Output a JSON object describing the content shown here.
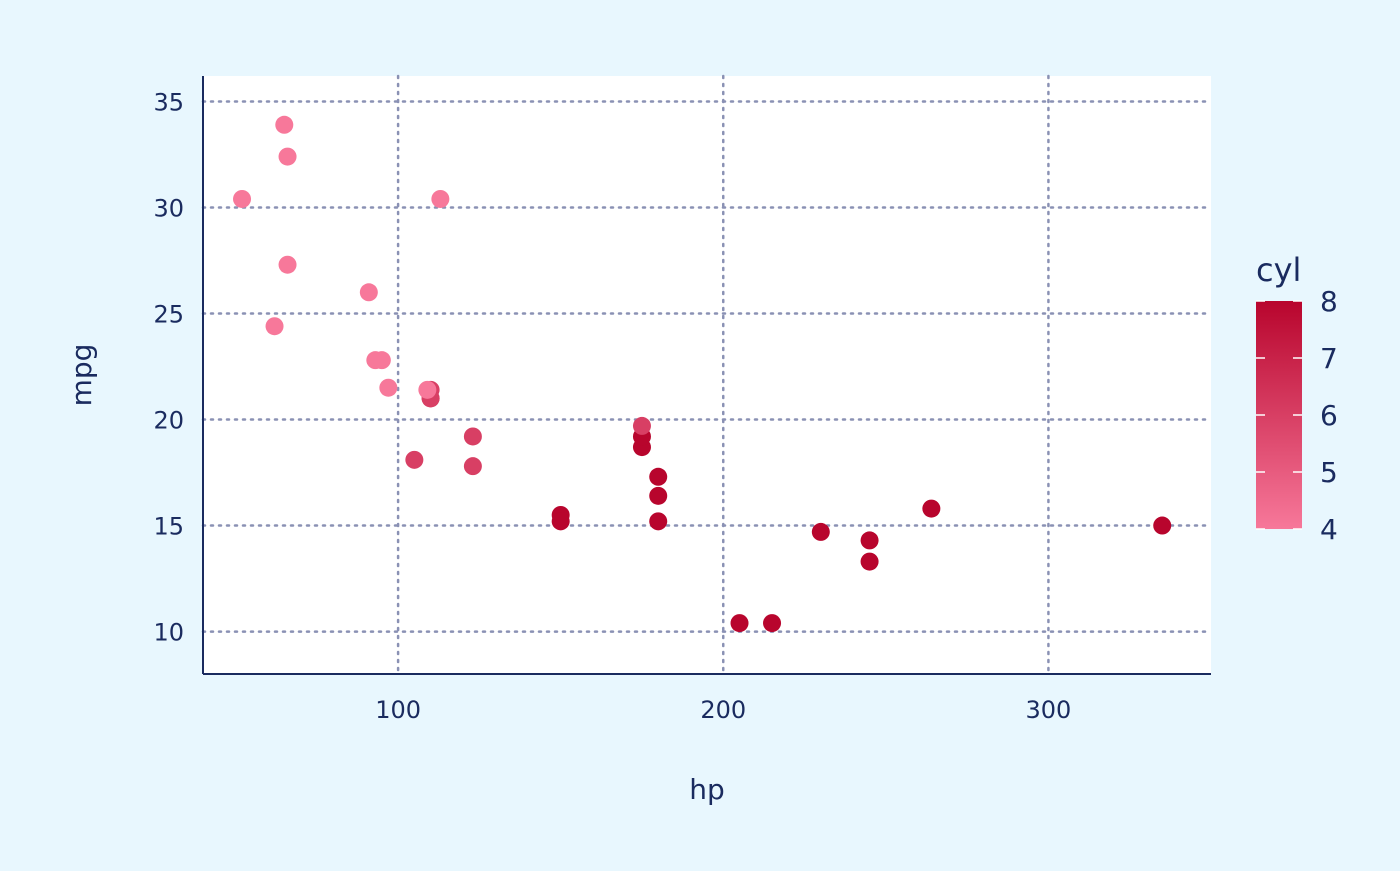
{
  "chart_data": {
    "type": "scatter",
    "title": "",
    "xlabel": "hp",
    "ylabel": "mpg",
    "xlim": [
      40,
      350
    ],
    "ylim": [
      8,
      36.2
    ],
    "x_ticks": [
      100,
      200,
      300
    ],
    "y_ticks": [
      10,
      15,
      20,
      25,
      30,
      35
    ],
    "x_tick_labels": [
      "100",
      "200",
      "300"
    ],
    "y_tick_labels": [
      "10",
      "15",
      "20",
      "25",
      "30",
      "35"
    ],
    "grid": true,
    "grid_style": "dotted",
    "legend": {
      "title": "cyl",
      "type": "colorbar",
      "position": "right",
      "range": [
        4,
        8
      ],
      "ticks": [
        4,
        5,
        6,
        7,
        8
      ],
      "tick_labels": [
        "4",
        "5",
        "6",
        "7",
        "8"
      ],
      "color_low": "#f7789a",
      "color_high": "#b8052d"
    },
    "points": [
      {
        "x": 110,
        "y": 21.0,
        "cyl": 6
      },
      {
        "x": 110,
        "y": 21.0,
        "cyl": 6
      },
      {
        "x": 93,
        "y": 22.8,
        "cyl": 4
      },
      {
        "x": 110,
        "y": 21.4,
        "cyl": 6
      },
      {
        "x": 175,
        "y": 18.7,
        "cyl": 8
      },
      {
        "x": 105,
        "y": 18.1,
        "cyl": 6
      },
      {
        "x": 245,
        "y": 14.3,
        "cyl": 8
      },
      {
        "x": 62,
        "y": 24.4,
        "cyl": 4
      },
      {
        "x": 95,
        "y": 22.8,
        "cyl": 4
      },
      {
        "x": 123,
        "y": 19.2,
        "cyl": 6
      },
      {
        "x": 123,
        "y": 17.8,
        "cyl": 6
      },
      {
        "x": 180,
        "y": 16.4,
        "cyl": 8
      },
      {
        "x": 180,
        "y": 17.3,
        "cyl": 8
      },
      {
        "x": 180,
        "y": 15.2,
        "cyl": 8
      },
      {
        "x": 205,
        "y": 10.4,
        "cyl": 8
      },
      {
        "x": 215,
        "y": 10.4,
        "cyl": 8
      },
      {
        "x": 230,
        "y": 14.7,
        "cyl": 8
      },
      {
        "x": 66,
        "y": 32.4,
        "cyl": 4
      },
      {
        "x": 52,
        "y": 30.4,
        "cyl": 4
      },
      {
        "x": 65,
        "y": 33.9,
        "cyl": 4
      },
      {
        "x": 97,
        "y": 21.5,
        "cyl": 4
      },
      {
        "x": 150,
        "y": 15.5,
        "cyl": 8
      },
      {
        "x": 150,
        "y": 15.2,
        "cyl": 8
      },
      {
        "x": 245,
        "y": 13.3,
        "cyl": 8
      },
      {
        "x": 175,
        "y": 19.2,
        "cyl": 8
      },
      {
        "x": 66,
        "y": 27.3,
        "cyl": 4
      },
      {
        "x": 91,
        "y": 26.0,
        "cyl": 4
      },
      {
        "x": 113,
        "y": 30.4,
        "cyl": 4
      },
      {
        "x": 264,
        "y": 15.8,
        "cyl": 8
      },
      {
        "x": 175,
        "y": 19.7,
        "cyl": 6
      },
      {
        "x": 335,
        "y": 15.0,
        "cyl": 8
      },
      {
        "x": 109,
        "y": 21.4,
        "cyl": 4
      }
    ]
  },
  "colors": {
    "page_background": "#e8f7fe",
    "panel_background": "#ffffff",
    "axis_line": "#1a2b5f",
    "grid_line": "#8a91b4",
    "text": "#1a2b5f"
  }
}
